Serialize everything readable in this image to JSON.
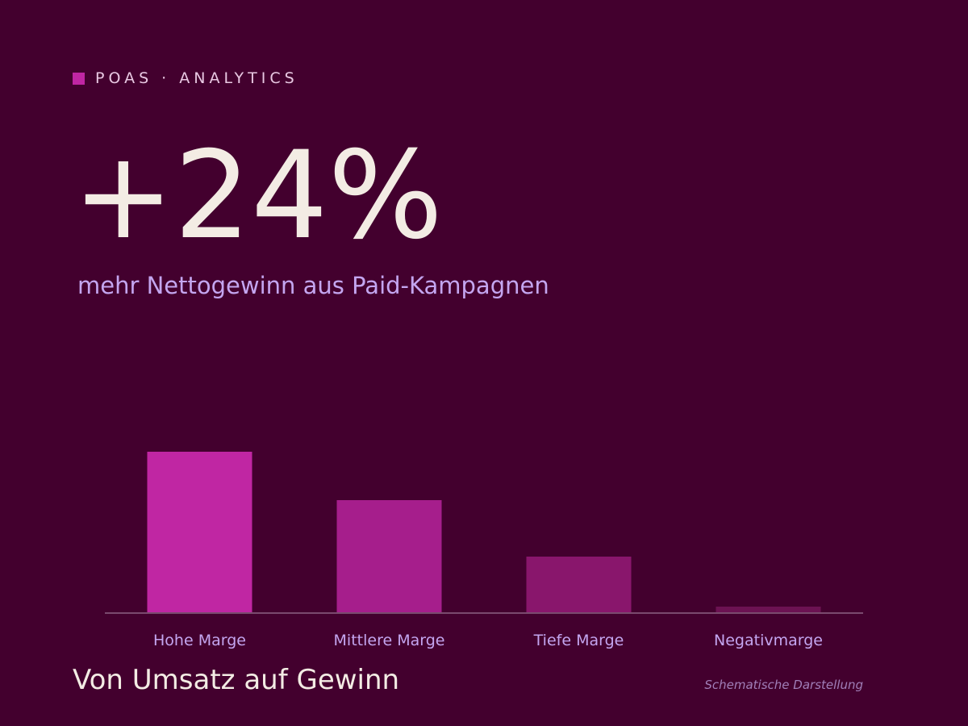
{
  "brand": {
    "label": "POAS · ANALYTICS",
    "accent": "#c026a3"
  },
  "headline": {
    "value": "+24%"
  },
  "subline": {
    "text": "mehr Nettogewinn aus Paid-Kampagnen"
  },
  "footer": {
    "title": "Von Umsatz auf Gewinn",
    "note": "Schematische Darstellung"
  },
  "colors": {
    "background": "#43002e",
    "axis": "#7a4a6e",
    "tick_label": "#c4a6f0"
  },
  "chart_data": {
    "type": "bar",
    "categories": [
      "Hohe Marge",
      "Mittlere Marge",
      "Tiefe Marge",
      "Negativmarge"
    ],
    "values": [
      100,
      70,
      35,
      4
    ],
    "bar_colors": [
      "#c026a3",
      "#a61e8c",
      "#89166c",
      "#6c1252"
    ],
    "ylim": [
      0,
      100
    ],
    "grid": false,
    "legend": "none"
  }
}
